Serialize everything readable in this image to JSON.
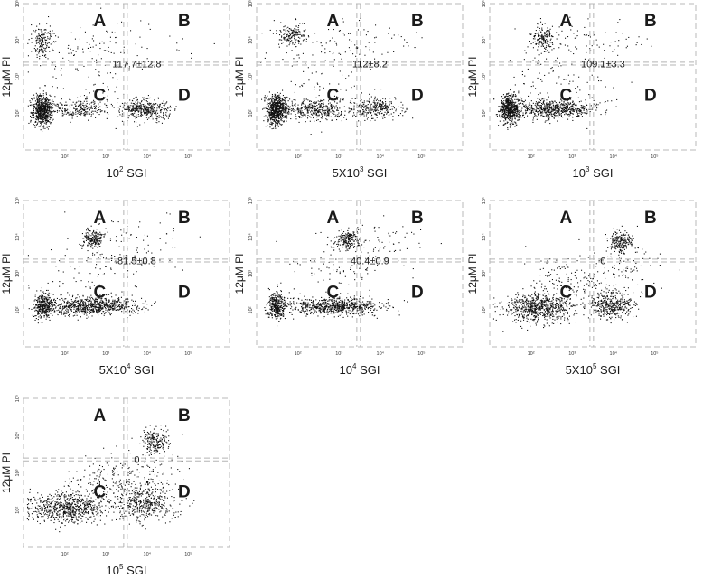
{
  "chart_data": [
    {
      "type": "scatter",
      "panel": 1,
      "ylabel": "12μM PI",
      "xlabel": {
        "base": "10",
        "exp": "2",
        "suffix": " SGI"
      },
      "annotation": "117.7±12.8",
      "quadrant_labels": [
        "A",
        "B",
        "C",
        "D"
      ],
      "x_scale": "log",
      "y_scale": "log",
      "xlim": [
        10,
        1000000
      ],
      "ylim": [
        10,
        100000
      ],
      "x_ticks": [
        "10²",
        "10³",
        "10⁴",
        "10⁵"
      ],
      "y_ticks": [
        "10²",
        "10³",
        "10⁴",
        "10⁵"
      ],
      "gates": {
        "x": [
          2700,
          3300
        ],
        "y": [
          2100,
          2500
        ]
      },
      "clusters": [
        {
          "x": 28,
          "y": 130,
          "sx": 0.12,
          "sy": 0.2,
          "count": 650
        },
        {
          "x": 200,
          "y": 135,
          "sx": 0.35,
          "sy": 0.12,
          "count": 220
        },
        {
          "x": 8500,
          "y": 135,
          "sx": 0.3,
          "sy": 0.14,
          "count": 380
        },
        {
          "x": 28,
          "y": 9000,
          "sx": 0.13,
          "sy": 0.22,
          "count": 170
        },
        {
          "x": 1500,
          "y": 7000,
          "sx": 0.9,
          "sy": 0.4,
          "count": 90
        },
        {
          "x": 300,
          "y": 800,
          "sx": 0.6,
          "sy": 0.6,
          "count": 80
        }
      ]
    },
    {
      "type": "scatter",
      "panel": 2,
      "ylabel": "12μM PI",
      "xlabel": {
        "base": "5X10",
        "exp": "3",
        "suffix": " SGI"
      },
      "annotation": "112±8.2",
      "quadrant_labels": [
        "A",
        "B",
        "C",
        "D"
      ],
      "x_scale": "log",
      "y_scale": "log",
      "xlim": [
        10,
        1000000
      ],
      "ylim": [
        10,
        100000
      ],
      "x_ticks": [
        "10²",
        "10³",
        "10⁴",
        "10⁵"
      ],
      "y_ticks": [
        "10²",
        "10³",
        "10⁴",
        "10⁵"
      ],
      "gates": {
        "x": [
          2700,
          3300
        ],
        "y": [
          2100,
          2500
        ]
      },
      "clusters": [
        {
          "x": 30,
          "y": 130,
          "sx": 0.13,
          "sy": 0.2,
          "count": 650
        },
        {
          "x": 300,
          "y": 130,
          "sx": 0.4,
          "sy": 0.13,
          "count": 380
        },
        {
          "x": 8000,
          "y": 140,
          "sx": 0.3,
          "sy": 0.14,
          "count": 280
        },
        {
          "x": 70,
          "y": 14000,
          "sx": 0.18,
          "sy": 0.16,
          "count": 160
        },
        {
          "x": 1800,
          "y": 9000,
          "sx": 0.9,
          "sy": 0.35,
          "count": 90
        },
        {
          "x": 300,
          "y": 900,
          "sx": 0.6,
          "sy": 0.6,
          "count": 80
        }
      ]
    },
    {
      "type": "scatter",
      "panel": 3,
      "ylabel": "12μM PI",
      "xlabel": {
        "base": "10",
        "exp": "3",
        "suffix": " SGI"
      },
      "annotation": "109.1±3.3",
      "quadrant_labels": [
        "A",
        "B",
        "C",
        "D"
      ],
      "x_scale": "log",
      "y_scale": "log",
      "xlim": [
        10,
        1000000
      ],
      "ylim": [
        10,
        100000
      ],
      "x_ticks": [
        "10²",
        "10³",
        "10⁴",
        "10⁵"
      ],
      "y_ticks": [
        "10²",
        "10³",
        "10⁴",
        "10⁵"
      ],
      "gates": {
        "x": [
          2700,
          3300
        ],
        "y": [
          2100,
          2500
        ]
      },
      "clusters": [
        {
          "x": 30,
          "y": 135,
          "sx": 0.12,
          "sy": 0.2,
          "count": 560
        },
        {
          "x": 400,
          "y": 140,
          "sx": 0.5,
          "sy": 0.13,
          "count": 620
        },
        {
          "x": 180,
          "y": 12000,
          "sx": 0.15,
          "sy": 0.15,
          "count": 160
        },
        {
          "x": 3000,
          "y": 9000,
          "sx": 0.8,
          "sy": 0.35,
          "count": 80
        },
        {
          "x": 400,
          "y": 1200,
          "sx": 0.6,
          "sy": 0.5,
          "count": 80
        }
      ]
    },
    {
      "type": "scatter",
      "panel": 4,
      "ylabel": "12μM PI",
      "xlabel": {
        "base": "5X10",
        "exp": "4",
        "suffix": " SGI"
      },
      "annotation": "81.5±0.8",
      "quadrant_labels": [
        "A",
        "B",
        "C",
        "D"
      ],
      "x_scale": "log",
      "y_scale": "log",
      "xlim": [
        10,
        1000000
      ],
      "ylim": [
        10,
        100000
      ],
      "x_ticks": [
        "10²",
        "10³",
        "10⁴",
        "10⁵"
      ],
      "y_ticks": [
        "10²",
        "10³",
        "10⁴",
        "10⁵"
      ],
      "gates": {
        "x": [
          2700,
          3300
        ],
        "y": [
          2100,
          2500
        ]
      },
      "clusters": [
        {
          "x": 30,
          "y": 140,
          "sx": 0.1,
          "sy": 0.18,
          "count": 320
        },
        {
          "x": 450,
          "y": 135,
          "sx": 0.55,
          "sy": 0.12,
          "count": 780
        },
        {
          "x": 500,
          "y": 9000,
          "sx": 0.13,
          "sy": 0.13,
          "count": 190
        },
        {
          "x": 5000,
          "y": 8000,
          "sx": 0.7,
          "sy": 0.35,
          "count": 80
        },
        {
          "x": 500,
          "y": 1300,
          "sx": 0.6,
          "sy": 0.45,
          "count": 80
        }
      ]
    },
    {
      "type": "scatter",
      "panel": 5,
      "ylabel": "12μM PI",
      "xlabel": {
        "base": "10",
        "exp": "4",
        "suffix": " SGI"
      },
      "annotation": "40.4±0.9",
      "quadrant_labels": [
        "A",
        "B",
        "C",
        "D"
      ],
      "x_scale": "log",
      "y_scale": "log",
      "xlim": [
        10,
        1000000
      ],
      "ylim": [
        10,
        100000
      ],
      "x_ticks": [
        "10²",
        "10³",
        "10⁴",
        "10⁵"
      ],
      "y_ticks": [
        "10²",
        "10³",
        "10⁴",
        "10⁵"
      ],
      "gates": {
        "x": [
          2700,
          3300
        ],
        "y": [
          2100,
          2500
        ]
      },
      "clusters": [
        {
          "x": 30,
          "y": 140,
          "sx": 0.11,
          "sy": 0.18,
          "count": 380
        },
        {
          "x": 800,
          "y": 130,
          "sx": 0.55,
          "sy": 0.12,
          "count": 720
        },
        {
          "x": 1600,
          "y": 9000,
          "sx": 0.13,
          "sy": 0.13,
          "count": 190
        },
        {
          "x": 7000,
          "y": 7000,
          "sx": 0.6,
          "sy": 0.35,
          "count": 80
        },
        {
          "x": 800,
          "y": 1300,
          "sx": 0.6,
          "sy": 0.45,
          "count": 70
        }
      ]
    },
    {
      "type": "scatter",
      "panel": 6,
      "ylabel": "12μM PI",
      "xlabel": {
        "base": "5X10",
        "exp": "5",
        "suffix": " SGI"
      },
      "annotation": "0",
      "quadrant_labels": [
        "A",
        "B",
        "C",
        "D"
      ],
      "x_scale": "log",
      "y_scale": "log",
      "xlim": [
        10,
        1000000
      ],
      "ylim": [
        10,
        100000
      ],
      "x_ticks": [
        "10²",
        "10³",
        "10⁴",
        "10⁵"
      ],
      "y_ticks": [
        "10²",
        "10³",
        "10⁴",
        "10⁵"
      ],
      "gates": {
        "x": [
          2700,
          3300
        ],
        "y": [
          2100,
          2500
        ]
      },
      "clusters": [
        {
          "x": 150,
          "y": 120,
          "sx": 0.4,
          "sy": 0.2,
          "count": 700
        },
        {
          "x": 9000,
          "y": 140,
          "sx": 0.25,
          "sy": 0.18,
          "count": 380
        },
        {
          "x": 15000,
          "y": 8000,
          "sx": 0.14,
          "sy": 0.14,
          "count": 200
        },
        {
          "x": 1000,
          "y": 600,
          "sx": 0.5,
          "sy": 0.35,
          "count": 160
        },
        {
          "x": 20000,
          "y": 1500,
          "sx": 0.4,
          "sy": 0.45,
          "count": 90
        }
      ]
    },
    {
      "type": "scatter",
      "panel": 7,
      "ylabel": "12μM PI",
      "xlabel": {
        "base": "10",
        "exp": "5",
        "suffix": " SGI"
      },
      "annotation": "0",
      "quadrant_labels": [
        "A",
        "B",
        "C",
        "D"
      ],
      "x_scale": "log",
      "y_scale": "log",
      "xlim": [
        10,
        1000000
      ],
      "ylim": [
        10,
        100000
      ],
      "x_ticks": [
        "10²",
        "10³",
        "10⁴",
        "10⁵"
      ],
      "y_ticks": [
        "10²",
        "10³",
        "10⁴",
        "10⁵"
      ],
      "gates": {
        "x": [
          2700,
          3300
        ],
        "y": [
          2100,
          2500
        ]
      },
      "clusters": [
        {
          "x": 100,
          "y": 115,
          "sx": 0.45,
          "sy": 0.2,
          "count": 700
        },
        {
          "x": 9000,
          "y": 150,
          "sx": 0.35,
          "sy": 0.22,
          "count": 420
        },
        {
          "x": 15000,
          "y": 7000,
          "sx": 0.16,
          "sy": 0.16,
          "count": 190
        },
        {
          "x": 900,
          "y": 500,
          "sx": 0.5,
          "sy": 0.35,
          "count": 200
        },
        {
          "x": 12000,
          "y": 1200,
          "sx": 0.4,
          "sy": 0.4,
          "count": 100
        }
      ]
    }
  ]
}
